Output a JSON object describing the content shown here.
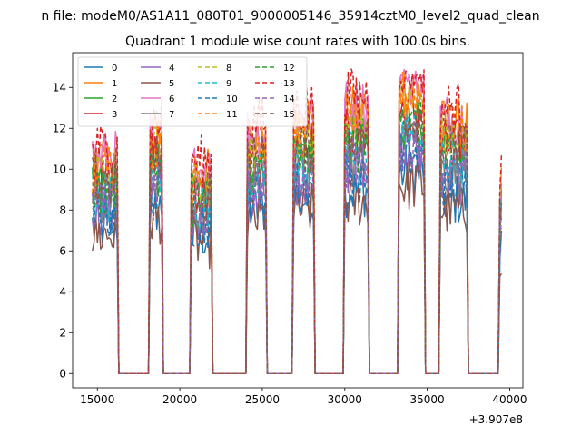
{
  "figure": {
    "suptitle": "n file: modeM0/AS1A11_080T01_9000005146_35914cztM0_level2_quad_clean",
    "title": "Quadrant 1 module wise count rates with 100.0s bins.",
    "x_offset_label": "+3.907e8"
  },
  "chart_data": {
    "type": "line",
    "title": "Quadrant 1 module wise count rates with 100.0s bins.",
    "xlabel": "",
    "ylabel": "",
    "xlim": [
      13500,
      40800
    ],
    "ylim": [
      -0.7,
      15.7
    ],
    "x_offset": 390700000,
    "xticks": [
      15000,
      20000,
      25000,
      30000,
      35000,
      40000
    ],
    "yticks": [
      0,
      2,
      4,
      6,
      8,
      10,
      12,
      14
    ],
    "grid": false,
    "legend": {
      "position": "upper-left",
      "columns": 4
    },
    "bin_seconds": 100.0,
    "x_range": [
      14700,
      39500
    ],
    "active_windows": [
      {
        "start": 14700,
        "end": 16200,
        "level": 8.5
      },
      {
        "start": 18200,
        "end": 18900,
        "level": 9.5
      },
      {
        "start": 20700,
        "end": 21900,
        "level": 8.0
      },
      {
        "start": 24100,
        "end": 25200,
        "level": 9.5
      },
      {
        "start": 26900,
        "end": 28100,
        "level": 10.0
      },
      {
        "start": 30000,
        "end": 31400,
        "level": 10.5
      },
      {
        "start": 33300,
        "end": 34800,
        "level": 11.5
      },
      {
        "start": 35800,
        "end": 37400,
        "level": 10.0
      },
      {
        "start": 39400,
        "end": 39500,
        "level": 7.3
      }
    ],
    "series": [
      {
        "name": "0",
        "color": "#1f77b4",
        "style": "solid",
        "scale": 0.85
      },
      {
        "name": "1",
        "color": "#ff7f0e",
        "style": "solid",
        "scale": 1.22
      },
      {
        "name": "2",
        "color": "#2ca02c",
        "style": "solid",
        "scale": 1.08
      },
      {
        "name": "3",
        "color": "#d62728",
        "style": "solid",
        "scale": 1.12
      },
      {
        "name": "4",
        "color": "#9467bd",
        "style": "solid",
        "scale": 0.95
      },
      {
        "name": "5",
        "color": "#8c564b",
        "style": "solid",
        "scale": 0.8
      },
      {
        "name": "6",
        "color": "#e377c2",
        "style": "solid",
        "scale": 1.25
      },
      {
        "name": "7",
        "color": "#7f7f7f",
        "style": "solid",
        "scale": 1.0
      },
      {
        "name": "8",
        "color": "#bcbd22",
        "style": "dashed",
        "scale": 1.15
      },
      {
        "name": "9",
        "color": "#17becf",
        "style": "dashed",
        "scale": 1.02
      },
      {
        "name": "10",
        "color": "#1f77b4",
        "style": "dashed",
        "scale": 0.92
      },
      {
        "name": "11",
        "color": "#ff7f0e",
        "style": "dashed",
        "scale": 1.18
      },
      {
        "name": "12",
        "color": "#2ca02c",
        "style": "dashed",
        "scale": 1.05
      },
      {
        "name": "13",
        "color": "#d62728",
        "style": "dashed",
        "scale": 1.3
      },
      {
        "name": "14",
        "color": "#9467bd",
        "style": "dashed",
        "scale": 0.98
      },
      {
        "name": "15",
        "color": "#8c564b",
        "style": "dashed",
        "scale": 1.1
      }
    ]
  }
}
